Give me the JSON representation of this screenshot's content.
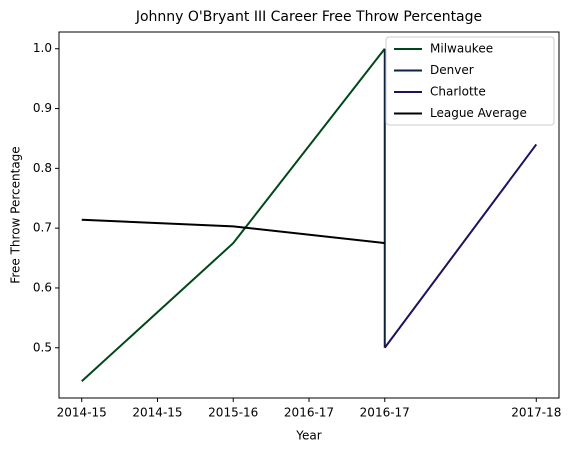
{
  "chart_data": {
    "type": "line",
    "title": "Johnny O'Bryant III Career Free Throw Percentage",
    "xlabel": "Year",
    "ylabel": "Free Throw Percentage",
    "series": [
      {
        "name": "Milwaukee",
        "color": "#00471b",
        "x": [
          0,
          1,
          2
        ],
        "values": [
          0.444,
          0.675,
          1.0
        ]
      },
      {
        "name": "Denver",
        "color": "#0e2240",
        "x": [
          2,
          2
        ],
        "values": [
          1.0,
          0.5
        ]
      },
      {
        "name": "Charlotte",
        "color": "#1d1160",
        "x": [
          2,
          3
        ],
        "values": [
          0.5,
          0.84
        ]
      },
      {
        "name": "League Average",
        "color": "#000000",
        "x": [
          0,
          1,
          2
        ],
        "values": [
          0.714,
          0.703,
          0.675
        ]
      }
    ],
    "xlim": [
      -0.15,
      3.15
    ],
    "xticks": [
      {
        "value": 0,
        "label": "2014-15"
      },
      {
        "value": 0.5,
        "label": "2014-15"
      },
      {
        "value": 1,
        "label": "2015-16"
      },
      {
        "value": 1.5,
        "label": "2016-17"
      },
      {
        "value": 2,
        "label": "2016-17"
      },
      {
        "value": 3,
        "label": "2017-18"
      }
    ],
    "ylim": [
      0.416,
      1.028
    ],
    "yticks": [
      {
        "value": 0.5,
        "label": "0.5"
      },
      {
        "value": 0.6,
        "label": "0.6"
      },
      {
        "value": 0.7,
        "label": "0.7"
      },
      {
        "value": 0.8,
        "label": "0.8"
      },
      {
        "value": 0.9,
        "label": "0.9"
      },
      {
        "value": 1.0,
        "label": "1.0"
      }
    ],
    "legend": "upper right",
    "grid": false
  }
}
